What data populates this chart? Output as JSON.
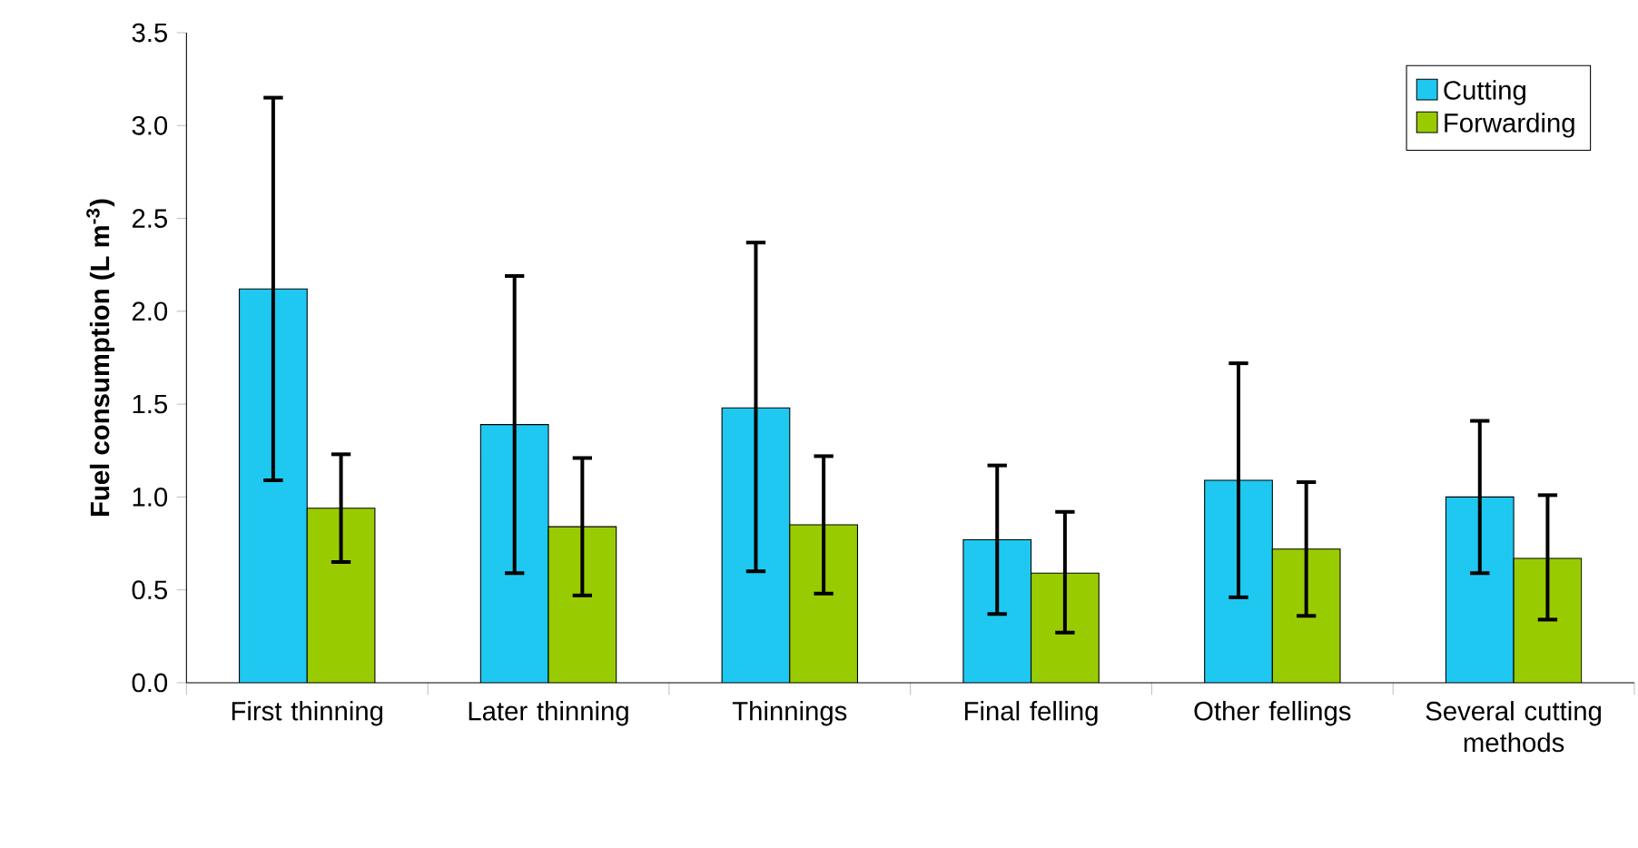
{
  "chart_data": {
    "type": "bar",
    "ylabel": "Fuel consumption (L m$^{-3}$)",
    "categories": [
      "First thinning",
      "Later thinning",
      "Thinnings",
      "Final felling",
      "Other fellings",
      "Several cutting methods"
    ],
    "series": [
      {
        "name": "Cutting",
        "color": "#1ec8f0",
        "values": [
          2.12,
          1.39,
          1.48,
          0.77,
          1.09,
          1.0
        ],
        "errors": [
          [
            1.09,
            3.15
          ],
          [
            0.59,
            2.19
          ],
          [
            0.6,
            2.37
          ],
          [
            0.37,
            1.17
          ],
          [
            0.46,
            1.72
          ],
          [
            0.59,
            1.41
          ]
        ]
      },
      {
        "name": "Forwarding",
        "color": "#99cc00",
        "values": [
          0.94,
          0.84,
          0.85,
          0.59,
          0.72,
          0.67
        ],
        "errors": [
          [
            0.65,
            1.23
          ],
          [
            0.47,
            1.21
          ],
          [
            0.48,
            1.22
          ],
          [
            0.27,
            0.92
          ],
          [
            0.36,
            1.08
          ],
          [
            0.34,
            1.01
          ]
        ]
      }
    ],
    "ylim": [
      0,
      3.5
    ],
    "yticks": [
      {
        "value": 0,
        "label": "0.0"
      },
      {
        "value": 0.5,
        "label": "0.5"
      },
      {
        "value": 1,
        "label": "1.0"
      },
      {
        "value": 1.5,
        "label": "1.5"
      },
      {
        "value": 2,
        "label": "2.0"
      },
      {
        "value": 2.5,
        "label": "2.5"
      },
      {
        "value": 3,
        "label": "3.0"
      },
      {
        "value": 3.5,
        "label": "3.5"
      }
    ],
    "grid": false,
    "legend": "top right"
  }
}
